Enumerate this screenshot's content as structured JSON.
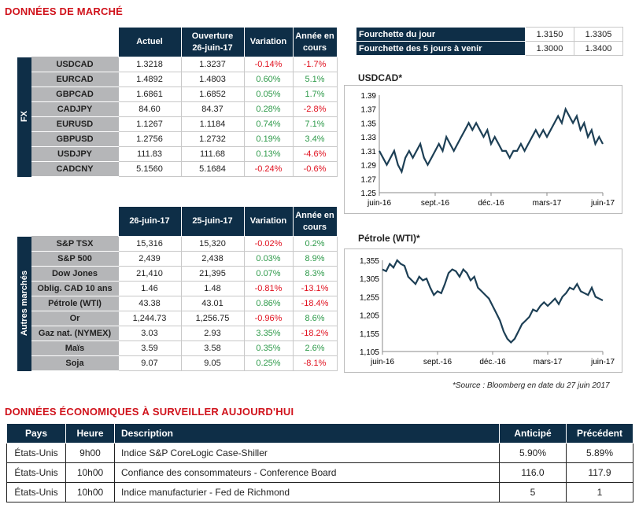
{
  "section1_title": "DONNÉES DE MARCHÉ",
  "fx": {
    "side_label": "FX",
    "headers": [
      "Actuel",
      "Ouverture\n26-juin-17",
      "Variation",
      "Année en cours"
    ],
    "rows": [
      [
        "USDCAD",
        "1.3218",
        "1.3237",
        "-0.14%",
        "-1.7%"
      ],
      [
        "EURCAD",
        "1.4892",
        "1.4803",
        "0.60%",
        "5.1%"
      ],
      [
        "GBPCAD",
        "1.6861",
        "1.6852",
        "0.05%",
        "1.7%"
      ],
      [
        "CADJPY",
        "84.60",
        "84.37",
        "0.28%",
        "-2.8%"
      ],
      [
        "EURUSD",
        "1.1267",
        "1.1184",
        "0.74%",
        "7.1%"
      ],
      [
        "GBPUSD",
        "1.2756",
        "1.2732",
        "0.19%",
        "3.4%"
      ],
      [
        "USDJPY",
        "111.83",
        "111.68",
        "0.13%",
        "-4.6%"
      ],
      [
        "CADCNY",
        "5.1560",
        "5.1684",
        "-0.24%",
        "-0.6%"
      ]
    ]
  },
  "other": {
    "side_label": "Autres marchés",
    "headers": [
      "26-juin-17",
      "25-juin-17",
      "Variation",
      "Année en cours"
    ],
    "rows": [
      [
        "S&P TSX",
        "15,316",
        "15,320",
        "-0.02%",
        "0.2%"
      ],
      [
        "S&P 500",
        "2,439",
        "2,438",
        "0.03%",
        "8.9%"
      ],
      [
        "Dow Jones",
        "21,410",
        "21,395",
        "0.07%",
        "8.3%"
      ],
      [
        "Oblig. CAD 10 ans",
        "1.46",
        "1.48",
        "-0.81%",
        "-13.1%"
      ],
      [
        "Pétrole (WTI)",
        "43.38",
        "43.01",
        "0.86%",
        "-18.4%"
      ],
      [
        "Or",
        "1,244.73",
        "1,256.75",
        "-0.96%",
        "8.6%"
      ],
      [
        "Gaz nat. (NYMEX)",
        "3.03",
        "2.93",
        "3.35%",
        "-18.2%"
      ],
      [
        "Maïs",
        "3.59",
        "3.58",
        "0.35%",
        "2.6%"
      ],
      [
        "Soja",
        "9.07",
        "9.05",
        "0.25%",
        "-8.1%"
      ]
    ]
  },
  "range": {
    "rows": [
      [
        "Fourchette du jour",
        "1.3150",
        "1.3305"
      ],
      [
        "Fourchette des 5 jours à venir",
        "1.3000",
        "1.3400"
      ]
    ]
  },
  "chart_data": [
    {
      "type": "line",
      "title": "USDCAD*",
      "ylim": [
        1.25,
        1.39
      ],
      "yticks": [
        "1.25",
        "1.27",
        "1.29",
        "1.31",
        "1.33",
        "1.35",
        "1.37",
        "1.39"
      ],
      "xticks": [
        "juin-16",
        "sept.-16",
        "déc.-16",
        "mars-17",
        "juin-17"
      ],
      "values": [
        1.31,
        1.3,
        1.29,
        1.3,
        1.31,
        1.29,
        1.28,
        1.3,
        1.31,
        1.3,
        1.31,
        1.32,
        1.3,
        1.29,
        1.3,
        1.31,
        1.32,
        1.31,
        1.33,
        1.32,
        1.31,
        1.32,
        1.33,
        1.34,
        1.35,
        1.34,
        1.35,
        1.34,
        1.33,
        1.34,
        1.32,
        1.33,
        1.32,
        1.31,
        1.31,
        1.3,
        1.31,
        1.31,
        1.32,
        1.31,
        1.32,
        1.33,
        1.34,
        1.33,
        1.34,
        1.33,
        1.34,
        1.35,
        1.36,
        1.35,
        1.37,
        1.36,
        1.35,
        1.36,
        1.34,
        1.35,
        1.33,
        1.34,
        1.32,
        1.33,
        1.32
      ]
    },
    {
      "type": "line",
      "title": "Pétrole (WTI)*",
      "ylim": [
        1105,
        1355
      ],
      "yticks": [
        "1,105",
        "1,155",
        "1,205",
        "1,255",
        "1,305",
        "1,355"
      ],
      "xticks": [
        "juin-16",
        "sept.-16",
        "déc.-16",
        "mars-17",
        "juin-17"
      ],
      "values": [
        1330,
        1325,
        1345,
        1335,
        1355,
        1345,
        1340,
        1310,
        1300,
        1290,
        1310,
        1300,
        1305,
        1280,
        1260,
        1270,
        1265,
        1290,
        1320,
        1330,
        1325,
        1310,
        1330,
        1320,
        1300,
        1310,
        1280,
        1270,
        1260,
        1250,
        1230,
        1210,
        1190,
        1160,
        1140,
        1130,
        1140,
        1160,
        1180,
        1190,
        1200,
        1220,
        1215,
        1230,
        1240,
        1230,
        1240,
        1250,
        1235,
        1255,
        1265,
        1280,
        1275,
        1290,
        1270,
        1265,
        1260,
        1280,
        1255,
        1250,
        1245
      ]
    }
  ],
  "source": "*Source : Bloomberg en date du  27 juin 2017",
  "section2_title": "DONNÉES ÉCONOMIQUES À SURVEILLER AUJOURD'HUI",
  "eco": {
    "headers": [
      "Pays",
      "Heure",
      "Description",
      "Anticipé",
      "Précédent"
    ],
    "rows": [
      [
        "États-Unis",
        "9h00",
        "Indice S&P CoreLogic Case-Shiller",
        "5.90%",
        "5.89%"
      ],
      [
        "États-Unis",
        "10h00",
        "Confiance des consommateurs - Conference Board",
        "116.0",
        "117.9"
      ],
      [
        "États-Unis",
        "10h00",
        "Indice manufacturier - Fed de Richmond",
        "5",
        "1"
      ]
    ]
  }
}
